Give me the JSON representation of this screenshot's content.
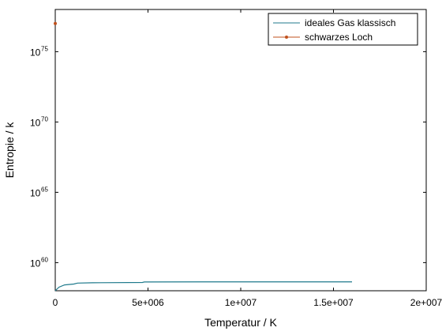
{
  "chart_data": {
    "type": "line",
    "title": "",
    "xlabel": "Temperatur / K",
    "ylabel": "Entropie / k",
    "xlim": [
      0,
      20000000
    ],
    "ylim": [
      1e+58,
      1e+78
    ],
    "yscale": "log",
    "grid": false,
    "legend_position": "top-right",
    "x_ticks": [
      {
        "value": 0,
        "label": "0"
      },
      {
        "value": 5000000,
        "label": "5e+006"
      },
      {
        "value": 10000000,
        "label": "1e+007"
      },
      {
        "value": 15000000,
        "label": "1.5e+007"
      },
      {
        "value": 20000000,
        "label": "2e+007"
      }
    ],
    "y_ticks": [
      {
        "value": 1e+60,
        "base": "10",
        "exponent": "60"
      },
      {
        "value": 1e+65,
        "base": "10",
        "exponent": "65"
      },
      {
        "value": 1e+70,
        "base": "10",
        "exponent": "70"
      },
      {
        "value": 1e+75,
        "base": "10",
        "exponent": "75"
      }
    ],
    "series": [
      {
        "name": "ideales Gas klassisch",
        "color": "#1f7a8c",
        "marker": "none",
        "x": [
          0,
          200000,
          500000,
          1000000,
          1200000,
          2000000,
          4700000,
          4800000,
          8000000,
          12000000,
          16000000
        ],
        "y": [
          1e+58,
          1.8e+58,
          2.6e+58,
          3e+58,
          3.5e+58,
          3.7e+58,
          3.9e+58,
          4.2e+58,
          4.3e+58,
          4.3e+58,
          4.3e+58
        ]
      },
      {
        "name": "schwarzes Loch",
        "color": "#c0501c",
        "marker": "dot",
        "x": [
          0
        ],
        "y": [
          1e+77
        ]
      }
    ]
  }
}
